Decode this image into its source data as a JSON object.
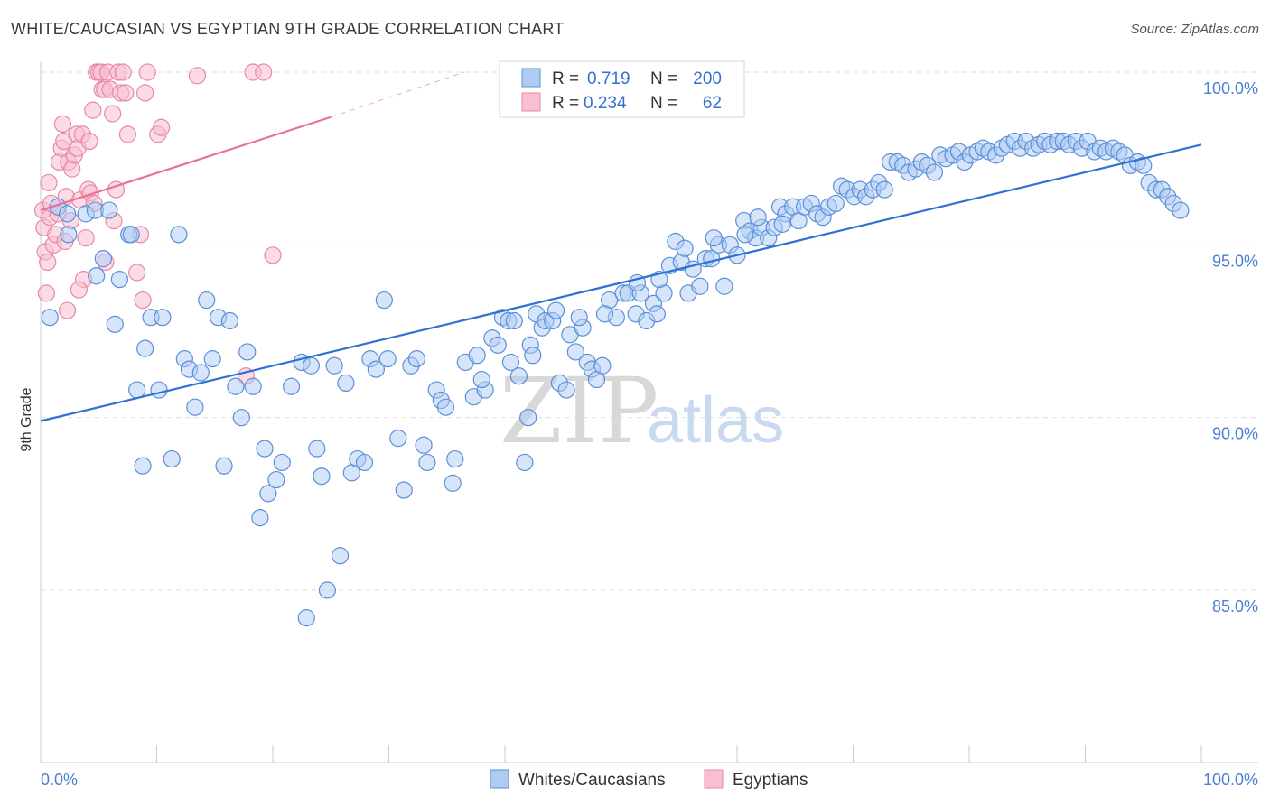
{
  "title": "WHITE/CAUCASIAN VS EGYPTIAN 9TH GRADE CORRELATION CHART",
  "source": "Source: ZipAtlas.com",
  "colors": {
    "blue_fill": "#aecbf3",
    "blue_stroke": "#5b8fd8",
    "blue_line": "#2f72d4",
    "pink_fill": "#f7bfd0",
    "pink_stroke": "#e888a8",
    "pink_line": "#e8709a",
    "axis_label": "#4a7fd4",
    "grid": "#dddddd"
  },
  "watermark": {
    "zip": "ZIP",
    "atlas": "atlas"
  },
  "legend": {
    "rows": [
      {
        "r_label": "R =",
        "r_value": "0.719",
        "n_label": "N =",
        "n_value": "200",
        "color": "blue"
      },
      {
        "r_label": "R =",
        "r_value": "0.234",
        "n_label": "N =",
        "n_value": "62",
        "color": "pink"
      }
    ]
  },
  "bottom_legend": {
    "items": [
      {
        "label": "Whites/Caucasians",
        "color": "blue"
      },
      {
        "label": "Egyptians",
        "color": "pink"
      }
    ]
  },
  "chart_data": {
    "type": "scatter",
    "title": "WHITE/CAUCASIAN VS EGYPTIAN 9TH GRADE CORRELATION CHART",
    "xlabel": "",
    "ylabel": "9th Grade",
    "xlim": [
      0,
      100
    ],
    "ylim": [
      80.5,
      100.5
    ],
    "x_tick_labels": [
      "0.0%",
      "100.0%"
    ],
    "y_ticks": [
      85.0,
      90.0,
      95.0,
      100.0
    ],
    "y_tick_labels": [
      "85.0%",
      "90.0%",
      "95.0%",
      "100.0%"
    ],
    "grid": true,
    "legend_position": "top-center",
    "series": [
      {
        "name": "Whites/Caucasians",
        "color": "#aecbf3",
        "trend": {
          "x0": 0,
          "y0": 89.9,
          "x1": 100,
          "y1": 97.9
        },
        "points": [
          [
            0.8,
            92.9
          ],
          [
            1.5,
            96.1
          ],
          [
            2.3,
            95.9
          ],
          [
            2.4,
            95.3
          ],
          [
            3.9,
            95.9
          ],
          [
            4.7,
            96.0
          ],
          [
            4.8,
            94.1
          ],
          [
            5.4,
            94.6
          ],
          [
            5.9,
            96.0
          ],
          [
            6.4,
            92.7
          ],
          [
            6.8,
            94.0
          ],
          [
            7.6,
            95.3
          ],
          [
            7.8,
            95.3
          ],
          [
            8.3,
            90.8
          ],
          [
            8.8,
            88.6
          ],
          [
            9.0,
            92.0
          ],
          [
            9.5,
            92.9
          ],
          [
            10.2,
            90.8
          ],
          [
            10.5,
            92.9
          ],
          [
            11.3,
            88.8
          ],
          [
            11.9,
            95.3
          ],
          [
            12.4,
            91.7
          ],
          [
            12.8,
            91.4
          ],
          [
            13.3,
            90.3
          ],
          [
            13.8,
            91.3
          ],
          [
            14.3,
            93.4
          ],
          [
            14.8,
            91.7
          ],
          [
            15.3,
            92.9
          ],
          [
            15.8,
            88.6
          ],
          [
            16.3,
            92.8
          ],
          [
            16.8,
            90.9
          ],
          [
            17.3,
            90.0
          ],
          [
            17.8,
            91.9
          ],
          [
            18.3,
            90.9
          ],
          [
            18.9,
            87.1
          ],
          [
            19.3,
            89.1
          ],
          [
            19.6,
            87.8
          ],
          [
            20.3,
            88.2
          ],
          [
            20.8,
            88.7
          ],
          [
            21.6,
            90.9
          ],
          [
            22.5,
            91.6
          ],
          [
            22.9,
            84.2
          ],
          [
            23.3,
            91.5
          ],
          [
            23.8,
            89.1
          ],
          [
            24.2,
            88.3
          ],
          [
            24.7,
            85.0
          ],
          [
            25.3,
            91.5
          ],
          [
            25.8,
            86.0
          ],
          [
            26.3,
            91.0
          ],
          [
            26.8,
            88.4
          ],
          [
            27.3,
            88.8
          ],
          [
            27.9,
            88.7
          ],
          [
            28.4,
            91.7
          ],
          [
            28.9,
            91.4
          ],
          [
            29.6,
            93.4
          ],
          [
            29.9,
            91.7
          ],
          [
            30.8,
            89.4
          ],
          [
            31.3,
            87.9
          ],
          [
            31.9,
            91.5
          ],
          [
            32.4,
            91.7
          ],
          [
            33.0,
            89.2
          ],
          [
            33.3,
            88.7
          ],
          [
            34.1,
            90.8
          ],
          [
            34.5,
            90.5
          ],
          [
            34.9,
            90.3
          ],
          [
            35.5,
            88.1
          ],
          [
            35.7,
            88.8
          ],
          [
            36.6,
            91.6
          ],
          [
            37.3,
            90.6
          ],
          [
            37.6,
            91.8
          ],
          [
            38.3,
            90.8
          ],
          [
            38.9,
            92.3
          ],
          [
            39.4,
            92.1
          ],
          [
            39.8,
            92.9
          ],
          [
            40.3,
            92.8
          ],
          [
            40.8,
            92.8
          ],
          [
            41.2,
            91.2
          ],
          [
            41.7,
            88.7
          ],
          [
            42.0,
            90.0
          ],
          [
            42.2,
            92.1
          ],
          [
            42.7,
            93.0
          ],
          [
            43.2,
            92.6
          ],
          [
            43.5,
            92.8
          ],
          [
            44.1,
            92.8
          ],
          [
            44.7,
            91.0
          ],
          [
            45.3,
            90.8
          ],
          [
            45.6,
            92.4
          ],
          [
            46.1,
            91.9
          ],
          [
            46.7,
            92.6
          ],
          [
            47.1,
            91.6
          ],
          [
            47.5,
            91.4
          ],
          [
            47.9,
            91.1
          ],
          [
            48.4,
            91.5
          ],
          [
            49.0,
            93.4
          ],
          [
            49.6,
            92.9
          ],
          [
            50.2,
            93.6
          ],
          [
            50.6,
            93.6
          ],
          [
            51.3,
            93.0
          ],
          [
            51.7,
            93.6
          ],
          [
            52.2,
            92.8
          ],
          [
            52.8,
            93.3
          ],
          [
            53.1,
            93.0
          ],
          [
            53.7,
            93.6
          ],
          [
            54.2,
            94.4
          ],
          [
            54.7,
            95.1
          ],
          [
            55.2,
            94.5
          ],
          [
            55.8,
            93.6
          ],
          [
            56.2,
            94.3
          ],
          [
            56.8,
            93.8
          ],
          [
            57.3,
            94.6
          ],
          [
            57.8,
            94.6
          ],
          [
            58.4,
            95.0
          ],
          [
            58.9,
            93.8
          ],
          [
            59.4,
            95.0
          ],
          [
            60.0,
            94.7
          ],
          [
            60.6,
            95.7
          ],
          [
            61.1,
            95.4
          ],
          [
            61.6,
            95.2
          ],
          [
            62.1,
            95.5
          ],
          [
            62.7,
            95.2
          ],
          [
            63.2,
            95.5
          ],
          [
            63.7,
            96.1
          ],
          [
            64.2,
            95.9
          ],
          [
            64.8,
            96.1
          ],
          [
            65.3,
            95.7
          ],
          [
            65.8,
            96.1
          ],
          [
            66.4,
            96.2
          ],
          [
            66.9,
            95.9
          ],
          [
            67.4,
            95.8
          ],
          [
            67.9,
            96.1
          ],
          [
            68.5,
            96.2
          ],
          [
            69.0,
            96.7
          ],
          [
            69.5,
            96.6
          ],
          [
            70.1,
            96.4
          ],
          [
            70.6,
            96.6
          ],
          [
            71.1,
            96.4
          ],
          [
            71.7,
            96.6
          ],
          [
            72.2,
            96.8
          ],
          [
            72.7,
            96.6
          ],
          [
            73.2,
            97.4
          ],
          [
            73.8,
            97.4
          ],
          [
            74.3,
            97.3
          ],
          [
            74.8,
            97.1
          ],
          [
            75.4,
            97.2
          ],
          [
            75.9,
            97.4
          ],
          [
            76.4,
            97.3
          ],
          [
            77.0,
            97.1
          ],
          [
            77.5,
            97.6
          ],
          [
            78.0,
            97.5
          ],
          [
            78.6,
            97.6
          ],
          [
            79.1,
            97.7
          ],
          [
            79.6,
            97.4
          ],
          [
            80.1,
            97.6
          ],
          [
            80.7,
            97.7
          ],
          [
            81.2,
            97.8
          ],
          [
            81.7,
            97.7
          ],
          [
            82.3,
            97.6
          ],
          [
            82.8,
            97.8
          ],
          [
            83.3,
            97.9
          ],
          [
            83.9,
            98.0
          ],
          [
            84.4,
            97.8
          ],
          [
            84.9,
            98.0
          ],
          [
            85.5,
            97.8
          ],
          [
            86.0,
            97.9
          ],
          [
            86.5,
            98.0
          ],
          [
            87.0,
            97.9
          ],
          [
            87.6,
            98.0
          ],
          [
            88.1,
            98.0
          ],
          [
            88.6,
            97.9
          ],
          [
            89.2,
            98.0
          ],
          [
            89.7,
            97.8
          ],
          [
            90.2,
            98.0
          ],
          [
            90.8,
            97.7
          ],
          [
            91.3,
            97.8
          ],
          [
            91.8,
            97.7
          ],
          [
            92.4,
            97.8
          ],
          [
            92.9,
            97.7
          ],
          [
            93.4,
            97.6
          ],
          [
            93.9,
            97.3
          ],
          [
            94.5,
            97.4
          ],
          [
            95.0,
            97.3
          ],
          [
            95.5,
            96.8
          ],
          [
            96.1,
            96.6
          ],
          [
            96.6,
            96.6
          ],
          [
            97.1,
            96.4
          ],
          [
            97.6,
            96.2
          ],
          [
            98.2,
            96.0
          ],
          [
            63.9,
            95.6
          ],
          [
            61.8,
            95.8
          ],
          [
            60.7,
            95.3
          ],
          [
            58.0,
            95.2
          ],
          [
            55.5,
            94.9
          ],
          [
            53.3,
            94.0
          ],
          [
            51.4,
            93.9
          ],
          [
            48.6,
            93.0
          ],
          [
            46.4,
            92.9
          ],
          [
            44.4,
            93.1
          ],
          [
            42.4,
            91.8
          ],
          [
            40.5,
            91.6
          ],
          [
            38.0,
            91.1
          ]
        ]
      },
      {
        "name": "Egyptians",
        "color": "#f7bfd0",
        "trend": {
          "x0": 0,
          "y0": 96.0,
          "x1": 25,
          "y1": 98.7
        },
        "trend_dashed": {
          "x0": 25,
          "y0": 98.7,
          "x1": 36.5,
          "y1": 100.0
        },
        "points": [
          [
            0.2,
            96.0
          ],
          [
            0.3,
            95.5
          ],
          [
            0.4,
            94.8
          ],
          [
            0.5,
            93.6
          ],
          [
            0.6,
            94.5
          ],
          [
            0.8,
            95.8
          ],
          [
            0.9,
            96.2
          ],
          [
            1.1,
            95.0
          ],
          [
            1.3,
            95.3
          ],
          [
            1.5,
            95.9
          ],
          [
            1.6,
            97.4
          ],
          [
            1.8,
            97.8
          ],
          [
            2.0,
            98.0
          ],
          [
            2.1,
            95.1
          ],
          [
            2.2,
            96.4
          ],
          [
            2.4,
            97.4
          ],
          [
            2.6,
            95.7
          ],
          [
            2.7,
            97.2
          ],
          [
            2.9,
            97.6
          ],
          [
            3.1,
            98.2
          ],
          [
            3.2,
            97.8
          ],
          [
            3.4,
            96.3
          ],
          [
            3.6,
            98.2
          ],
          [
            3.7,
            94.0
          ],
          [
            3.9,
            95.2
          ],
          [
            4.1,
            96.6
          ],
          [
            4.2,
            98.0
          ],
          [
            4.3,
            96.5
          ],
          [
            4.5,
            98.9
          ],
          [
            4.6,
            96.2
          ],
          [
            4.8,
            100.0
          ],
          [
            5.0,
            100.0
          ],
          [
            5.2,
            100.0
          ],
          [
            5.3,
            99.5
          ],
          [
            5.5,
            99.5
          ],
          [
            5.6,
            94.5
          ],
          [
            5.8,
            100.0
          ],
          [
            6.0,
            99.5
          ],
          [
            6.2,
            98.8
          ],
          [
            6.3,
            95.7
          ],
          [
            6.5,
            96.6
          ],
          [
            6.7,
            100.0
          ],
          [
            6.9,
            99.4
          ],
          [
            7.1,
            100.0
          ],
          [
            7.3,
            99.4
          ],
          [
            7.5,
            98.2
          ],
          [
            8.3,
            94.2
          ],
          [
            8.6,
            95.3
          ],
          [
            8.8,
            93.4
          ],
          [
            9.0,
            99.4
          ],
          [
            9.2,
            100.0
          ],
          [
            10.1,
            98.2
          ],
          [
            10.4,
            98.4
          ],
          [
            13.5,
            99.9
          ],
          [
            17.7,
            91.2
          ],
          [
            18.3,
            100.0
          ],
          [
            19.2,
            100.0
          ],
          [
            20.0,
            94.7
          ],
          [
            2.3,
            93.1
          ],
          [
            3.3,
            93.7
          ],
          [
            1.9,
            98.5
          ],
          [
            0.7,
            96.8
          ]
        ]
      }
    ]
  }
}
